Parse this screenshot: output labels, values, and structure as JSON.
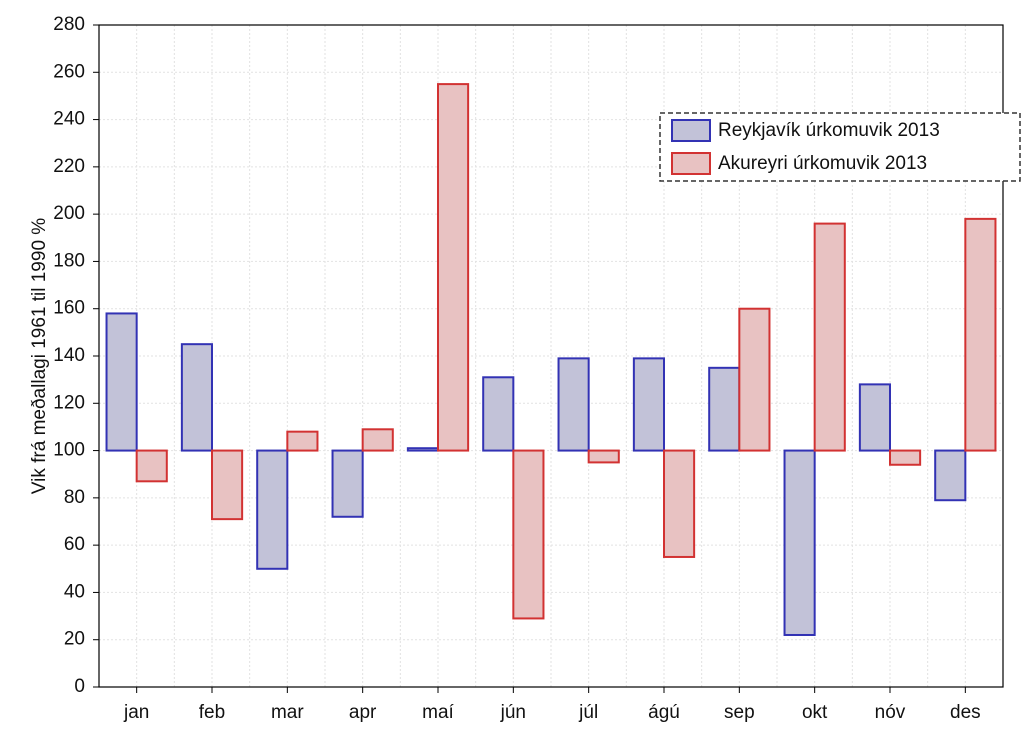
{
  "chart_data": {
    "type": "bar",
    "y_label": "Vik frá meðallagi 1961 til 1990 %",
    "categories": [
      "jan",
      "feb",
      "mar",
      "apr",
      "maí",
      "jún",
      "júl",
      "ágú",
      "sep",
      "okt",
      "nóv",
      "des"
    ],
    "series": [
      {
        "name": "Reykjavík úrkomuvik 2013",
        "color": "#3232b4",
        "fill": "#c2c2d8",
        "values": [
          158,
          145,
          50,
          72,
          101,
          131,
          139,
          139,
          135,
          22,
          128,
          79
        ]
      },
      {
        "name": "Akureyri úrkomuvik 2013",
        "color": "#d23232",
        "fill": "#e8c2c2",
        "values": [
          87,
          71,
          108,
          109,
          255,
          29,
          95,
          55,
          160,
          196,
          94,
          198
        ]
      }
    ],
    "bar_base": 100,
    "ylim": [
      0,
      280
    ],
    "yticks": [
      0,
      20,
      40,
      60,
      80,
      100,
      120,
      140,
      160,
      180,
      200,
      220,
      240,
      260,
      280
    ],
    "grid": true,
    "legend": "upper right"
  }
}
